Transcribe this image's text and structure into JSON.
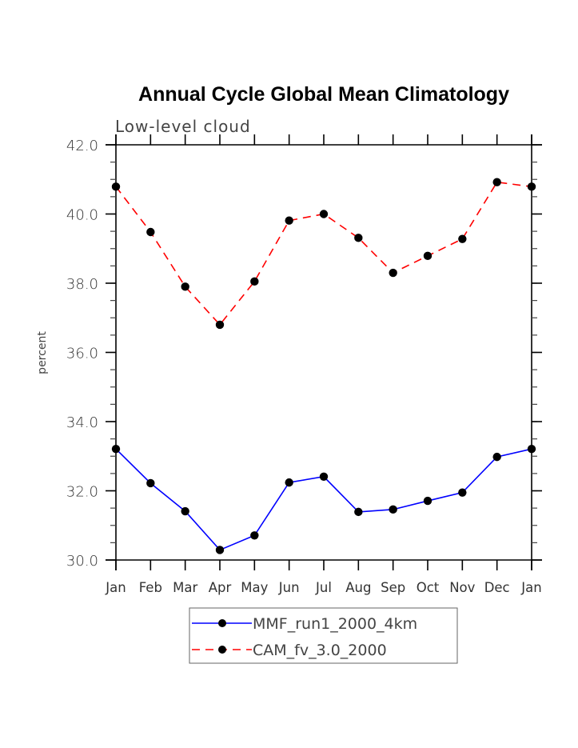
{
  "chart_data": {
    "type": "line",
    "title": "Annual Cycle Global Mean Climatology",
    "subtitle": "Low-level cloud",
    "xlabel": "",
    "ylabel": "percent",
    "categories": [
      "Jan",
      "Feb",
      "Mar",
      "Apr",
      "May",
      "Jun",
      "Jul",
      "Aug",
      "Sep",
      "Oct",
      "Nov",
      "Dec",
      "Jan"
    ],
    "ylim": [
      30.0,
      42.0
    ],
    "yticks": [
      30.0,
      32.0,
      34.0,
      36.0,
      38.0,
      40.0,
      42.0
    ],
    "ytick_labels": [
      "30.0",
      "32.0",
      "34.0",
      "36.0",
      "38.0",
      "40.0",
      "42.0"
    ],
    "yminor_step": 0.5,
    "grid": false,
    "legend_position": "bottom-center",
    "series": [
      {
        "name": "MMF_run1_2000_4km",
        "color": "#0000ff",
        "dash": "solid",
        "marker": "filled-circle",
        "values": [
          33.21,
          32.22,
          31.41,
          30.29,
          30.71,
          32.24,
          32.41,
          31.39,
          31.46,
          31.71,
          31.95,
          32.98,
          33.21
        ]
      },
      {
        "name": "CAM_fv_3.0_2000",
        "color": "#ff0000",
        "dash": "dashed",
        "marker": "filled-circle",
        "values": [
          40.79,
          39.48,
          37.9,
          36.8,
          38.05,
          39.81,
          40.0,
          39.31,
          38.3,
          38.79,
          39.28,
          40.92,
          40.79
        ]
      }
    ]
  }
}
